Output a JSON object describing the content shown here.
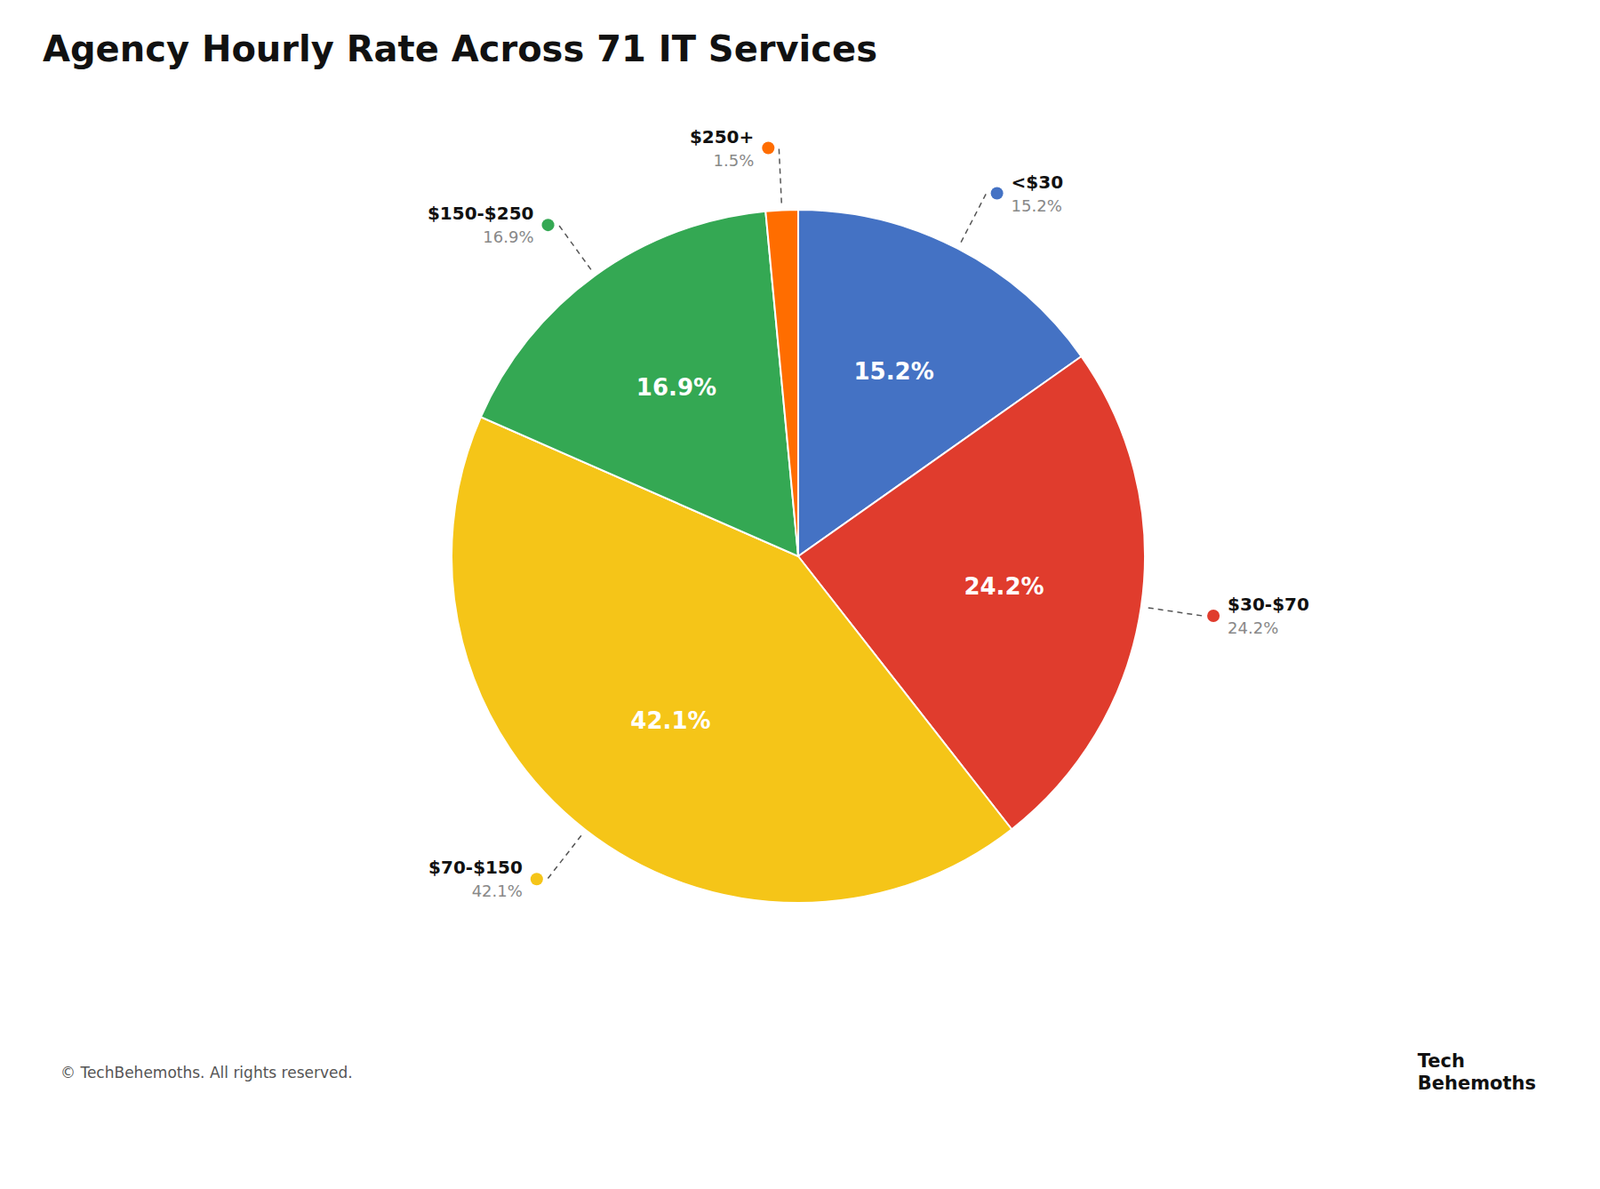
{
  "chart_data": {
    "type": "pie",
    "title": "Agency Hourly Rate Across 71 IT Services",
    "categories": [
      "<$30",
      "$30-$70",
      "$70-$150",
      "$150-$250",
      "$250+"
    ],
    "values": [
      15.2,
      24.2,
      42.1,
      16.9,
      1.5
    ],
    "value_labels": [
      "15.2%",
      "24.2%",
      "42.1%",
      "16.9%",
      "1.5%"
    ],
    "colors": [
      "#4472C4",
      "#E03C2D",
      "#F5C518",
      "#34A853",
      "#FF6D00"
    ],
    "data_labels": true,
    "annotations": [
      "© TechBehemoths. All rights reserved.",
      "Tech",
      "Behemoths"
    ]
  }
}
